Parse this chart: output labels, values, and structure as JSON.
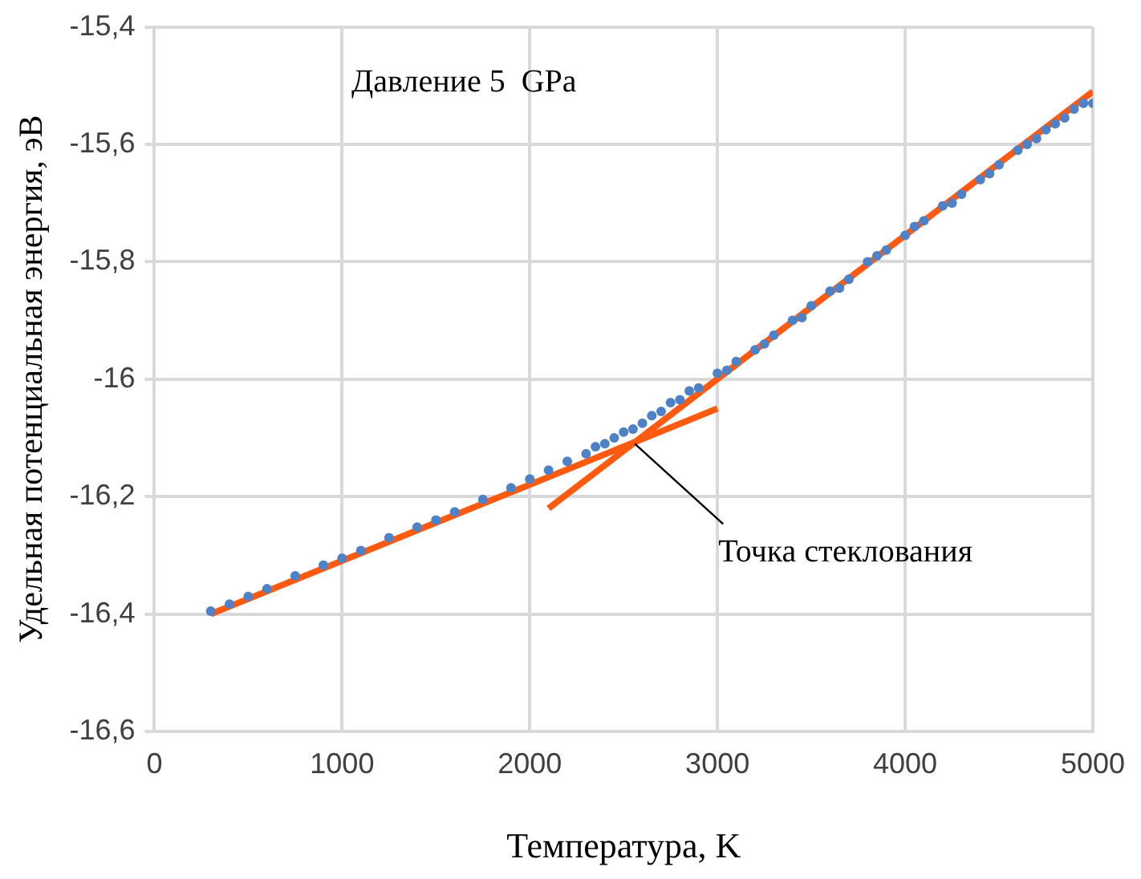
{
  "chart_data": {
    "type": "scatter",
    "xlabel": "Температура, K",
    "ylabel": "Удельная потенциальная энергия, эВ",
    "xlim": [
      0,
      5000
    ],
    "ylim": [
      -16.6,
      -15.4
    ],
    "xticks": [
      0,
      1000,
      2000,
      3000,
      4000,
      5000
    ],
    "yticks": [
      {
        "value": -16.6,
        "label": "-16,6"
      },
      {
        "value": -16.4,
        "label": "-16,4"
      },
      {
        "value": -16.2,
        "label": "-16,2"
      },
      -16,
      {
        "value": -15.8,
        "label": "-15,8"
      },
      {
        "value": -15.6,
        "label": "-15,6"
      },
      {
        "value": -15.4,
        "label": "-15,4"
      }
    ],
    "grid": true,
    "annotations": [
      "Давление 5  GPa",
      {
        "text": "Точка стеклования",
        "x": 2560,
        "y": -16.11
      }
    ],
    "series": [
      {
        "marker": "circle",
        "color": "#4f81c7",
        "x": [
          300,
          400,
          500,
          600,
          750,
          900,
          1000,
          1100,
          1250,
          1400,
          1500,
          1600,
          1750,
          1900,
          2000,
          2100,
          2200,
          2300,
          2350,
          2400,
          2450,
          2500,
          2550,
          2600,
          2650,
          2700,
          2750,
          2800,
          2850,
          2900,
          3000,
          3050,
          3100,
          3200,
          3250,
          3300,
          3400,
          3450,
          3500,
          3600,
          3650,
          3700,
          3800,
          3850,
          3900,
          4000,
          4050,
          4100,
          4200,
          4250,
          4300,
          4400,
          4450,
          4500,
          4600,
          4650,
          4700,
          4750,
          4800,
          4850,
          4900,
          4950,
          5000
        ],
        "values": [
          -16.395,
          -16.383,
          -16.37,
          -16.357,
          -16.335,
          -16.317,
          -16.305,
          -16.292,
          -16.27,
          -16.252,
          -16.24,
          -16.226,
          -16.205,
          -16.185,
          -16.17,
          -16.155,
          -16.14,
          -16.127,
          -16.115,
          -16.11,
          -16.1,
          -16.09,
          -16.085,
          -16.075,
          -16.062,
          -16.055,
          -16.04,
          -16.035,
          -16.02,
          -16.015,
          -15.99,
          -15.985,
          -15.97,
          -15.95,
          -15.94,
          -15.925,
          -15.9,
          -15.895,
          -15.875,
          -15.85,
          -15.845,
          -15.83,
          -15.8,
          -15.79,
          -15.78,
          -15.755,
          -15.74,
          -15.73,
          -15.705,
          -15.7,
          -15.685,
          -15.66,
          -15.65,
          -15.635,
          -15.61,
          -15.6,
          -15.59,
          -15.575,
          -15.565,
          -15.555,
          -15.54,
          -15.53,
          -15.53
        ]
      },
      {
        "type": "line",
        "color": "#ff5a10",
        "x": [
          300,
          3000
        ],
        "values": [
          -16.4,
          -16.05
        ]
      },
      {
        "type": "line",
        "color": "#ff5a10",
        "x": [
          2100,
          5000
        ],
        "values": [
          -16.22,
          -15.51
        ]
      }
    ]
  }
}
